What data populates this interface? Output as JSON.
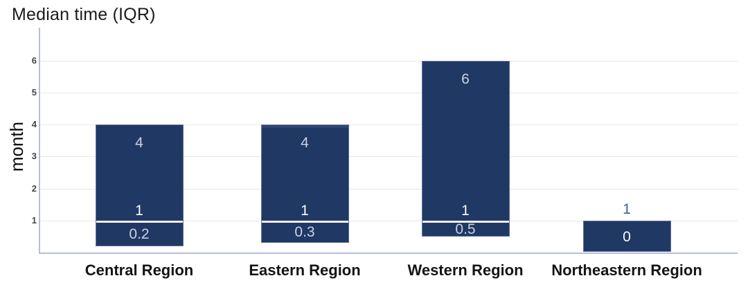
{
  "chart_data": {
    "type": "bar",
    "subtype": "floating-range-iqr-boxes",
    "title": "Median time (IQR)",
    "ylabel": "month",
    "xlabel": "",
    "ylim": [
      0,
      7
    ],
    "yticks": [
      1,
      2,
      3,
      4,
      5,
      6
    ],
    "grid": "horizontal-light",
    "legend": "none",
    "categories": [
      "Central Region",
      "Eastern Region",
      "Western Region",
      "Northeastern Region"
    ],
    "bars": [
      {
        "category": "Central Region",
        "q1": 0.2,
        "median": 1,
        "q3": 4,
        "labels": {
          "q3": "4",
          "median": "1",
          "q1": "0.2"
        }
      },
      {
        "category": "Eastern Region",
        "q1": 0.3,
        "median": 1,
        "q3": 4,
        "top_cap": true,
        "labels": {
          "q3": "4",
          "median": "1",
          "q1": "0.3"
        }
      },
      {
        "category": "Western Region",
        "q1": 0.5,
        "median": 1,
        "q3": 6,
        "labels": {
          "q3": "6",
          "median": "1",
          "q1": "0.5"
        }
      },
      {
        "category": "Northeastern Region",
        "q1": 0,
        "median": 1,
        "q3": 1,
        "labels": {
          "median": "1",
          "q1": "0"
        },
        "q1_label_style": "white"
      }
    ]
  },
  "colors": {
    "bar_fill": "#203864",
    "bar_cap": "#31456F",
    "bar_border": "#9AA4C4",
    "median_line": "#F2F2F8",
    "label_light": "#CBD1E2",
    "label_white": "#FAFBFD",
    "label_dark_blue": "#3D5DA6",
    "axis_line": "#B7BCDA",
    "gridline": "#E6E7EE",
    "tick_text": "#45454E",
    "title_text": "#1B1B1B",
    "xlabel_text": "#141414"
  }
}
